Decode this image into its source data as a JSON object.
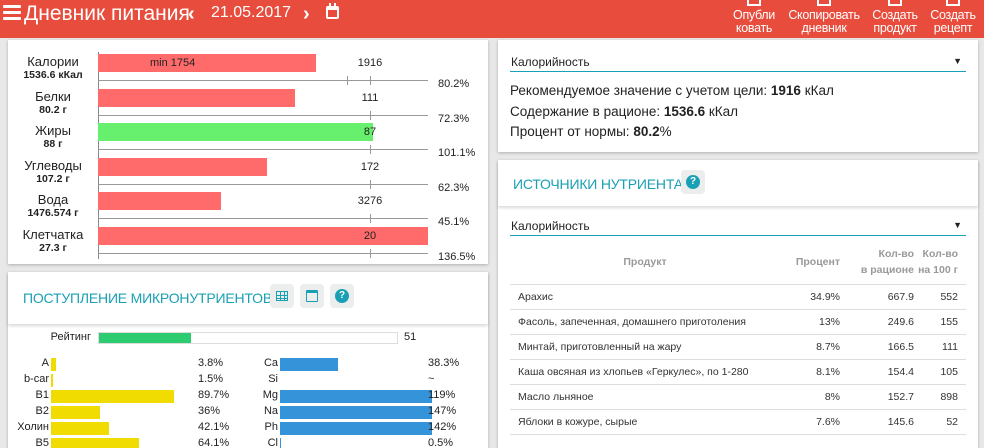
{
  "header": {
    "title": "Дневник питания",
    "date": "21.05.2017",
    "prev_icon": "‹",
    "next_icon": "›",
    "actions": [
      {
        "label": "Опубли\nковать",
        "icon": "share-icon"
      },
      {
        "label": "Скопировать\nдневник",
        "icon": "copy-icon"
      },
      {
        "label": "Создать\nпродукт",
        "icon": "add-product-icon"
      },
      {
        "label": "Создать\nрецепт",
        "icon": "add-recipe-icon"
      }
    ]
  },
  "macros": {
    "rows": [
      {
        "name": "Калории",
        "value": "1536.6 кКал",
        "target": "1916",
        "min": "min 1754",
        "percent": "80.2%",
        "fill_pct": 80.2,
        "color": "#ff6b6b"
      },
      {
        "name": "Белки",
        "value": "80.2 г",
        "target": "111",
        "percent": "72.3%",
        "fill_pct": 72.3,
        "color": "#ff6b6b"
      },
      {
        "name": "Жиры",
        "value": "88 г",
        "target": "87",
        "percent": "101.1%",
        "fill_pct": 101.1,
        "color": "#66f06e"
      },
      {
        "name": "Углеводы",
        "value": "107.2 г",
        "target": "172",
        "percent": "62.3%",
        "fill_pct": 62.3,
        "color": "#ff6b6b"
      },
      {
        "name": "Вода",
        "value": "1476.574 г",
        "target": "3276",
        "percent": "45.1%",
        "fill_pct": 45.1,
        "color": "#ff6b6b"
      },
      {
        "name": "Клетчатка",
        "value": "27.3 г",
        "target": "20",
        "percent": "136.5%",
        "fill_pct": 136.5,
        "color": "#ff6b6b"
      }
    ]
  },
  "micro": {
    "title": "ПОСТУПЛЕНИЕ МИКРОНУТРИЕНТОВ",
    "help_glyph": "?",
    "rating_label": "Рейтинг",
    "rating_value": "51",
    "vitamins": [
      {
        "name": "A",
        "percent": "3.8%",
        "fill": 3.8
      },
      {
        "name": "b-car",
        "percent": "1.5%",
        "fill": 1.5
      },
      {
        "name": "B1",
        "percent": "89.7%",
        "fill": 89.7
      },
      {
        "name": "B2",
        "percent": "36%",
        "fill": 36
      },
      {
        "name": "Холин",
        "percent": "42.1%",
        "fill": 42.1
      },
      {
        "name": "B5",
        "percent": "64.1%",
        "fill": 64.1
      }
    ],
    "minerals": [
      {
        "name": "Ca",
        "percent": "38.3%",
        "fill": 38.3
      },
      {
        "name": "Si",
        "percent": "~",
        "fill": 0
      },
      {
        "name": "Mg",
        "percent": "119%",
        "fill": 119
      },
      {
        "name": "Na",
        "percent": "147%",
        "fill": 147
      },
      {
        "name": "Ph",
        "percent": "142%",
        "fill": 142
      },
      {
        "name": "Cl",
        "percent": "0.5%",
        "fill": 0.5
      }
    ]
  },
  "calorie_info": {
    "select_value": "Калорийность",
    "select_arrow": "▼",
    "recommended_label": "Рекомендуемое значение с учетом цели: ",
    "recommended_value": "1916",
    "recommended_unit": " кКал",
    "content_label": "Содержание в рационе: ",
    "content_value": "1536.6",
    "content_unit": " кКал",
    "percent_label": "Процент от нормы: ",
    "percent_value": "80.2",
    "percent_unit": "%"
  },
  "sources": {
    "title": "ИСТОЧНИКИ НУТРИЕНТА",
    "help_glyph": "?",
    "select_value": "Калорийность",
    "select_arrow": "▼",
    "columns": {
      "product": "Продукт",
      "percent": "Процент",
      "amount_l1": "Кол-во",
      "amount_l2": "в рационе",
      "per100_l1": "Кол-во",
      "per100_l2": "на 100 г"
    },
    "rows": [
      {
        "product": "Арахис",
        "percent": "34.9%",
        "amount": "667.9",
        "per100": "552"
      },
      {
        "product": "Фасоль, запеченная, домашнего приготоления",
        "percent": "13%",
        "amount": "249.6",
        "per100": "155"
      },
      {
        "product": "Минтай, приготовленный на жару",
        "percent": "8.7%",
        "amount": "166.5",
        "per100": "111"
      },
      {
        "product": "Каша овсяная из хлопьев «Геркулес», по 1-280",
        "percent": "8.1%",
        "amount": "154.4",
        "per100": "105"
      },
      {
        "product": "Масло льняное",
        "percent": "8%",
        "amount": "152.7",
        "per100": "898"
      },
      {
        "product": "Яблоки в кожуре, сырые",
        "percent": "7.6%",
        "amount": "145.6",
        "per100": "52"
      }
    ]
  }
}
